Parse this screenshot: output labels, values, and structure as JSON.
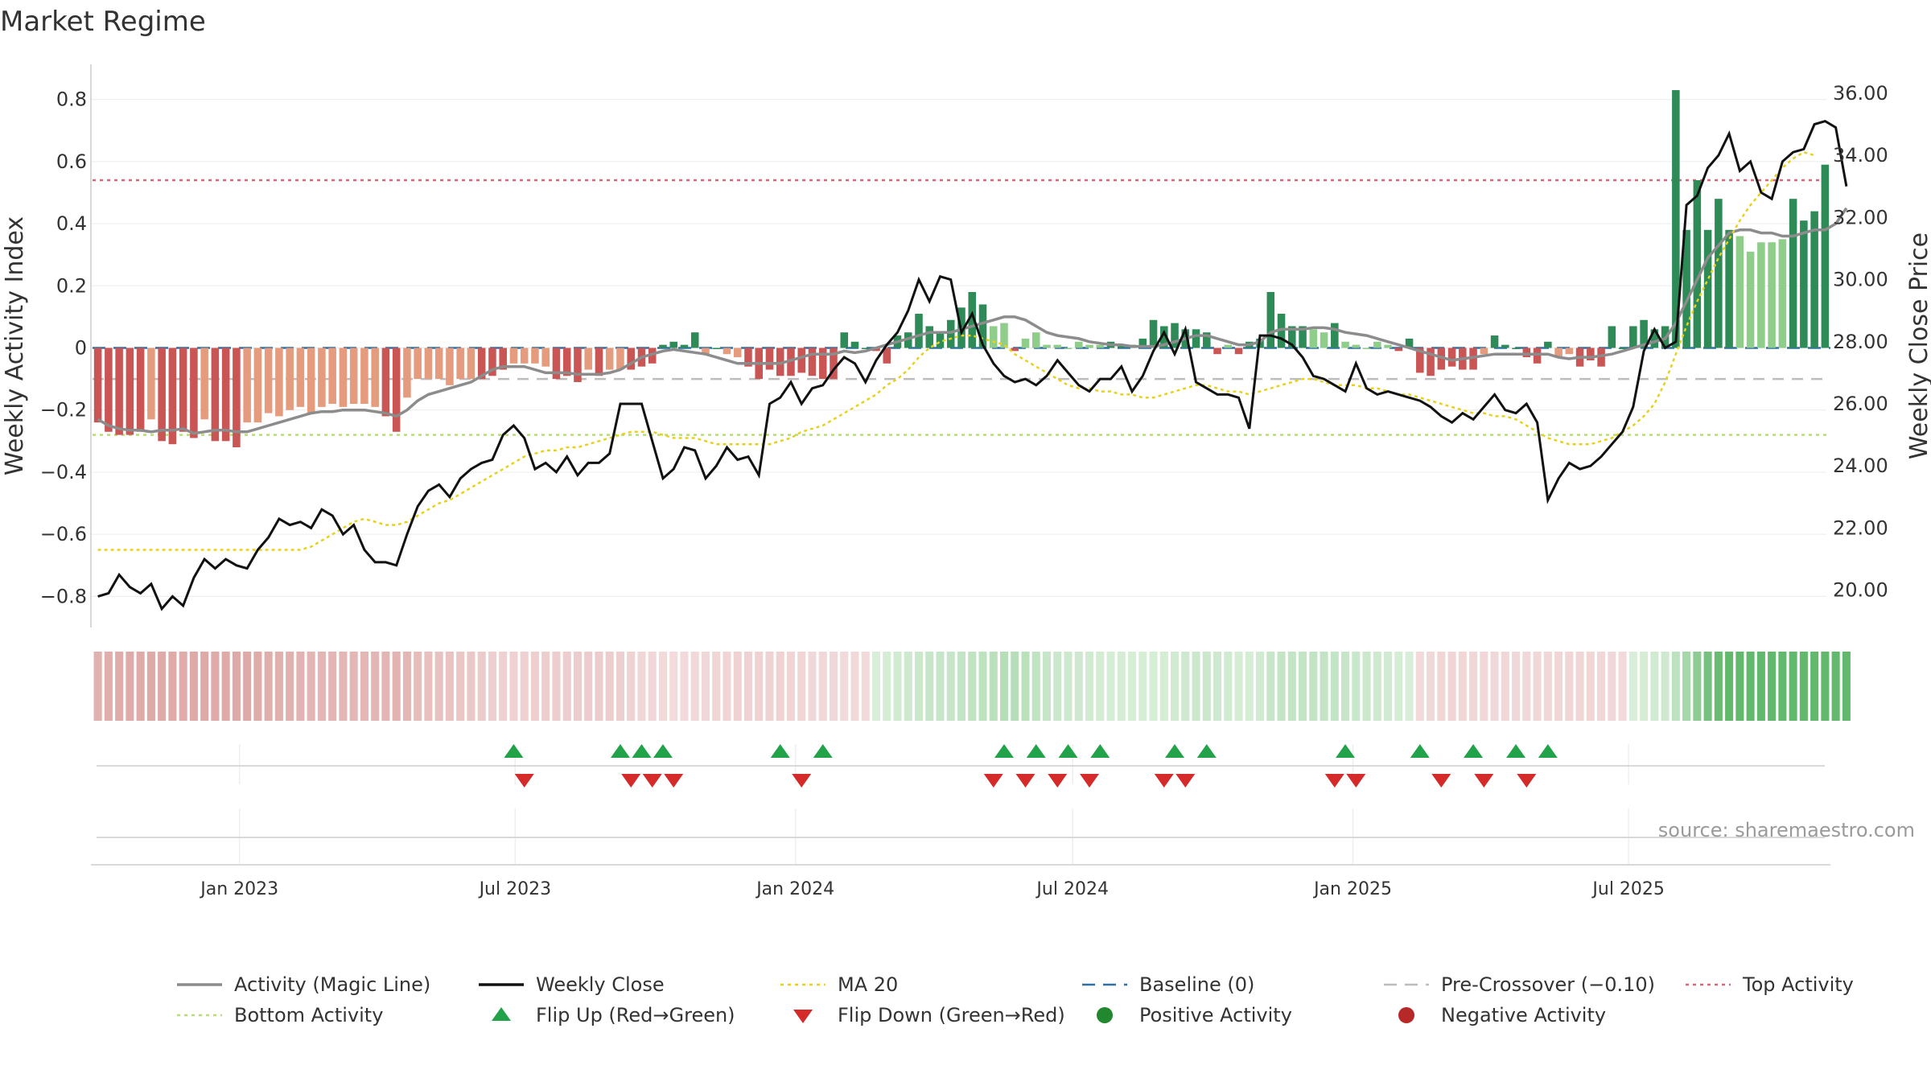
{
  "title": "Market Regime",
  "y_left_label": "Weekly Activity Index",
  "y_right_label": "Weekly Close Price",
  "source": "source: sharemaestro.com",
  "left_ticks": [
    "0.8",
    "0.6",
    "0.4",
    "0.2",
    "0",
    "−0.2",
    "−0.4",
    "−0.6",
    "−0.8"
  ],
  "right_ticks": [
    "36.00",
    "34.00",
    "32.00",
    "30.00",
    "28.00",
    "26.00",
    "24.00",
    "22.00",
    "20.00"
  ],
  "x_ticks": [
    "Jan 2023",
    "Jul 2023",
    "Jan 2024",
    "Jul 2024",
    "Jan 2025",
    "Jul 2025"
  ],
  "legend": [
    {
      "label": "Activity (Magic Line)",
      "kind": "line",
      "color": "#8c8c8c"
    },
    {
      "label": "Weekly Close",
      "kind": "line",
      "color": "#111111"
    },
    {
      "label": "MA 20",
      "kind": "dotted",
      "color": "#e6d21e"
    },
    {
      "label": "Baseline (0)",
      "kind": "dashed",
      "color": "#2f6fa5"
    },
    {
      "label": "Pre-Crossover (−0.10)",
      "kind": "dashed",
      "color": "#bdbdbd"
    },
    {
      "label": "Top Activity",
      "kind": "dotted",
      "color": "#d9667f"
    },
    {
      "label": "Bottom Activity",
      "kind": "dotted",
      "color": "#b6dd76"
    },
    {
      "label": "Flip Up (Red→Green)",
      "kind": "tri-up",
      "color": "#22a34a"
    },
    {
      "label": "Flip Down (Green→Red)",
      "kind": "tri-down",
      "color": "#d42a2a"
    },
    {
      "label": "Positive Activity",
      "kind": "dot",
      "color": "#22882f"
    },
    {
      "label": "Negative Activity",
      "kind": "dot",
      "color": "#b72828"
    }
  ],
  "chart_data": {
    "type": "bar",
    "x_start": "2022-09-30",
    "x_step_days": 7,
    "activity_bars": [
      -0.24,
      -0.27,
      -0.28,
      -0.28,
      -0.27,
      -0.23,
      -0.3,
      -0.31,
      -0.27,
      -0.29,
      -0.23,
      -0.3,
      -0.3,
      -0.32,
      -0.24,
      -0.24,
      -0.21,
      -0.22,
      -0.2,
      -0.19,
      -0.21,
      -0.19,
      -0.18,
      -0.19,
      -0.18,
      -0.18,
      -0.19,
      -0.22,
      -0.27,
      -0.16,
      -0.1,
      -0.1,
      -0.1,
      -0.12,
      -0.1,
      -0.1,
      -0.1,
      -0.09,
      -0.07,
      -0.05,
      -0.05,
      -0.05,
      -0.06,
      -0.1,
      -0.09,
      -0.11,
      -0.07,
      -0.09,
      -0.07,
      -0.07,
      -0.07,
      -0.06,
      -0.05,
      0.01,
      0.02,
      0.01,
      0.05,
      -0.02,
      0.0,
      -0.02,
      -0.03,
      -0.06,
      -0.1,
      -0.07,
      -0.09,
      -0.09,
      -0.08,
      -0.09,
      -0.1,
      -0.1,
      0.05,
      0.02,
      0.0,
      -0.01,
      -0.05,
      0.04,
      0.05,
      0.11,
      0.07,
      0.05,
      0.09,
      0.13,
      0.18,
      0.14,
      0.07,
      0.08,
      -0.01,
      0.03,
      0.05,
      0.01,
      0.01,
      0.0,
      0.02,
      0.01,
      0.01,
      0.02,
      0.01,
      0.01,
      0.03,
      0.09,
      0.07,
      0.08,
      0.06,
      0.06,
      0.05,
      -0.02,
      0.01,
      -0.02,
      0.02,
      0.03,
      0.18,
      0.11,
      0.07,
      0.07,
      0.06,
      0.05,
      0.08,
      0.02,
      0.01,
      0.0,
      0.02,
      0.01,
      -0.01,
      0.03,
      -0.08,
      -0.09,
      -0.07,
      -0.06,
      -0.07,
      -0.07,
      -0.02,
      0.04,
      0.01,
      0.0,
      -0.03,
      -0.05,
      0.02,
      -0.03,
      -0.02,
      -0.06,
      -0.04,
      -0.06,
      0.07,
      0.0,
      0.07,
      0.09,
      0.06,
      0.07,
      0.83,
      0.38,
      0.54,
      0.38,
      0.48,
      0.38,
      0.36,
      0.31,
      0.34,
      0.34,
      0.35,
      0.48,
      0.41,
      0.44,
      0.59
    ],
    "magic_line": [
      -0.23,
      -0.25,
      -0.26,
      -0.265,
      -0.265,
      -0.27,
      -0.265,
      -0.265,
      -0.26,
      -0.275,
      -0.27,
      -0.265,
      -0.265,
      -0.27,
      -0.27,
      -0.26,
      -0.25,
      -0.24,
      -0.23,
      -0.22,
      -0.21,
      -0.205,
      -0.205,
      -0.2,
      -0.2,
      -0.2,
      -0.205,
      -0.21,
      -0.22,
      -0.2,
      -0.17,
      -0.15,
      -0.14,
      -0.13,
      -0.12,
      -0.11,
      -0.09,
      -0.07,
      -0.06,
      -0.06,
      -0.06,
      -0.07,
      -0.08,
      -0.08,
      -0.08,
      -0.085,
      -0.085,
      -0.085,
      -0.08,
      -0.07,
      -0.05,
      -0.03,
      -0.02,
      -0.01,
      -0.005,
      -0.01,
      -0.015,
      -0.02,
      -0.03,
      -0.04,
      -0.05,
      -0.05,
      -0.05,
      -0.05,
      -0.05,
      -0.04,
      -0.03,
      -0.02,
      -0.02,
      -0.02,
      -0.01,
      -0.015,
      -0.01,
      0.0,
      0.01,
      0.02,
      0.03,
      0.04,
      0.05,
      0.05,
      0.05,
      0.06,
      0.07,
      0.08,
      0.09,
      0.1,
      0.1,
      0.09,
      0.07,
      0.05,
      0.04,
      0.035,
      0.03,
      0.02,
      0.015,
      0.01,
      0.01,
      0.005,
      0.005,
      0.005,
      0.01,
      0.02,
      0.03,
      0.04,
      0.04,
      0.03,
      0.02,
      0.01,
      0.01,
      0.02,
      0.05,
      0.06,
      0.06,
      0.06,
      0.065,
      0.065,
      0.06,
      0.05,
      0.045,
      0.04,
      0.03,
      0.02,
      0.01,
      0.0,
      -0.01,
      -0.02,
      -0.03,
      -0.04,
      -0.035,
      -0.03,
      -0.025,
      -0.02,
      -0.02,
      -0.02,
      -0.02,
      -0.02,
      -0.02,
      -0.03,
      -0.035,
      -0.03,
      -0.03,
      -0.025,
      -0.02,
      -0.01,
      0.0,
      0.01,
      0.02,
      0.03,
      0.08,
      0.15,
      0.22,
      0.29,
      0.33,
      0.37,
      0.38,
      0.38,
      0.37,
      0.37,
      0.36,
      0.36,
      0.37,
      0.38,
      0.38,
      0.4,
      0.45
    ],
    "weekly_close": [
      19.8,
      19.9,
      20.5,
      20.1,
      19.9,
      20.2,
      19.4,
      19.8,
      19.5,
      20.4,
      21.0,
      20.7,
      21.0,
      20.8,
      20.7,
      21.3,
      21.7,
      22.3,
      22.1,
      22.2,
      22.0,
      22.6,
      22.4,
      21.8,
      22.1,
      21.3,
      20.9,
      20.9,
      20.8,
      21.8,
      22.7,
      23.2,
      23.4,
      23.0,
      23.6,
      23.9,
      24.1,
      24.2,
      25.0,
      25.3,
      24.9,
      23.9,
      24.1,
      23.8,
      24.3,
      23.7,
      24.1,
      24.1,
      24.4,
      26.0,
      26.0,
      26.0,
      24.8,
      23.6,
      23.9,
      24.6,
      24.5,
      23.6,
      24.0,
      24.6,
      24.2,
      24.3,
      23.7,
      26.0,
      26.2,
      26.7,
      26.0,
      26.5,
      26.6,
      27.1,
      27.5,
      27.3,
      26.7,
      27.4,
      27.9,
      28.3,
      29.0,
      30.0,
      29.3,
      30.1,
      30.0,
      28.3,
      28.9,
      27.9,
      27.3,
      26.9,
      26.7,
      26.8,
      26.6,
      26.9,
      27.4,
      27.0,
      26.6,
      26.4,
      26.8,
      26.8,
      27.2,
      26.4,
      26.9,
      27.7,
      28.3,
      27.6,
      28.4,
      26.7,
      26.5,
      26.3,
      26.3,
      26.2,
      25.2,
      28.2,
      28.2,
      28.1,
      27.9,
      27.5,
      26.9,
      26.8,
      26.6,
      26.4,
      27.3,
      26.5,
      26.3,
      26.4,
      26.3,
      26.2,
      26.1,
      25.9,
      25.6,
      25.4,
      25.7,
      25.5,
      25.9,
      26.3,
      25.8,
      25.7,
      26.0,
      25.4,
      22.9,
      23.6,
      24.1,
      23.9,
      24.0,
      24.3,
      24.7,
      25.1,
      25.9,
      27.7,
      28.4,
      27.8,
      28.0,
      32.4,
      32.7,
      33.6,
      34.0,
      34.7,
      33.5,
      33.8,
      32.8,
      32.6,
      33.8,
      34.1,
      34.2,
      35.0,
      35.1,
      34.9,
      33.0
    ],
    "ma20": [
      21.3,
      21.3,
      21.3,
      21.3,
      21.3,
      21.3,
      21.3,
      21.3,
      21.3,
      21.3,
      21.3,
      21.3,
      21.3,
      21.3,
      21.3,
      21.3,
      21.3,
      21.3,
      21.3,
      21.3,
      21.4,
      21.6,
      21.8,
      22.0,
      22.2,
      22.3,
      22.2,
      22.1,
      22.1,
      22.2,
      22.4,
      22.6,
      22.8,
      22.9,
      23.1,
      23.3,
      23.5,
      23.7,
      23.9,
      24.1,
      24.3,
      24.4,
      24.5,
      24.5,
      24.6,
      24.6,
      24.7,
      24.8,
      24.9,
      25.0,
      25.1,
      25.1,
      25.1,
      25.0,
      24.9,
      24.9,
      24.9,
      24.8,
      24.7,
      24.7,
      24.7,
      24.7,
      24.7,
      24.7,
      24.8,
      24.9,
      25.1,
      25.2,
      25.3,
      25.5,
      25.7,
      25.9,
      26.1,
      26.3,
      26.6,
      26.8,
      27.1,
      27.5,
      27.8,
      28.0,
      28.1,
      28.2,
      28.2,
      28.1,
      28.0,
      27.9,
      27.6,
      27.4,
      27.2,
      27.0,
      26.8,
      26.6,
      26.5,
      26.5,
      26.4,
      26.4,
      26.3,
      26.3,
      26.2,
      26.2,
      26.3,
      26.4,
      26.5,
      26.6,
      26.6,
      26.5,
      26.4,
      26.4,
      26.3,
      26.4,
      26.5,
      26.6,
      26.7,
      26.8,
      26.8,
      26.7,
      26.6,
      26.6,
      26.6,
      26.5,
      26.5,
      26.4,
      26.3,
      26.3,
      26.2,
      26.1,
      26.0,
      25.9,
      25.8,
      25.7,
      25.7,
      25.6,
      25.6,
      25.5,
      25.3,
      25.1,
      24.9,
      24.8,
      24.7,
      24.7,
      24.7,
      24.8,
      24.9,
      25.1,
      25.3,
      25.6,
      26.0,
      26.7,
      27.6,
      28.5,
      29.3,
      30.0,
      30.7,
      31.3,
      31.9,
      32.4,
      32.8,
      33.2,
      33.6,
      33.9,
      34.1,
      34.0
    ],
    "flip_up_idx": [
      39,
      49,
      51,
      53,
      64,
      68,
      85,
      88,
      91,
      94,
      101,
      104,
      117,
      124,
      129,
      133,
      136
    ],
    "flip_down_idx": [
      40,
      50,
      52,
      54,
      66,
      84,
      87,
      90,
      93,
      100,
      102,
      116,
      118,
      126,
      130,
      134
    ],
    "y_left_range": [
      -0.9,
      0.9
    ],
    "y_right_range": [
      18.8,
      36.8
    ],
    "top_activity": 0.54,
    "bottom_activity": -0.28,
    "pre_crossover": -0.1,
    "baseline": 0,
    "colors": {
      "neg_strong": "#c95555",
      "neg_weak": "#e59b7d",
      "pos_strong": "#2e8b57",
      "pos_weak": "#8fce8a",
      "close": "#111111",
      "magic": "#8c8c8c",
      "ma": "#e6d21e",
      "top": "#d9667f",
      "bottom": "#b6dd76",
      "pre": "#bdbdbd",
      "base": "#2f6fa5",
      "flip_up": "#22a34a",
      "flip_down": "#d42a2a"
    }
  }
}
